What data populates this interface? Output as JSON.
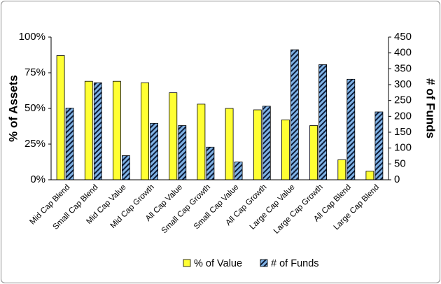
{
  "chart_data": {
    "type": "bar",
    "categories": [
      "Mid Cap Blend",
      "Small Cap Blend",
      "Mid Cap Value",
      "Mid Cap Growth",
      "All Cap Value",
      "Small Cap Growth",
      "Small Cap Value",
      "All Cap Growth",
      "Large Cap Value",
      "Large Cap Growth",
      "All Cap Blend",
      "Large Cap Blend"
    ],
    "series": [
      {
        "name": "% of Value",
        "axis": "left",
        "color": "#ffff33",
        "values": [
          87,
          69,
          69,
          68,
          61,
          53,
          50,
          49,
          42,
          38,
          14,
          6
        ]
      },
      {
        "name": "# of Funds",
        "axis": "right",
        "color": "#6fa3d8",
        "pattern": "dark-diagonal-stripes",
        "values": [
          226,
          306,
          76,
          178,
          171,
          103,
          56,
          232,
          410,
          363,
          317,
          214
        ]
      }
    ],
    "y_left": {
      "label": "% of Assets",
      "min": 0,
      "max": 100,
      "ticks": [
        "0%",
        "25%",
        "50%",
        "75%",
        "100%"
      ]
    },
    "y_right": {
      "label": "# of Funds",
      "min": 0,
      "max": 450,
      "ticks": [
        "0",
        "50",
        "100",
        "150",
        "200",
        "250",
        "300",
        "350",
        "400",
        "450"
      ]
    },
    "grid": false,
    "legend": "bottom"
  }
}
